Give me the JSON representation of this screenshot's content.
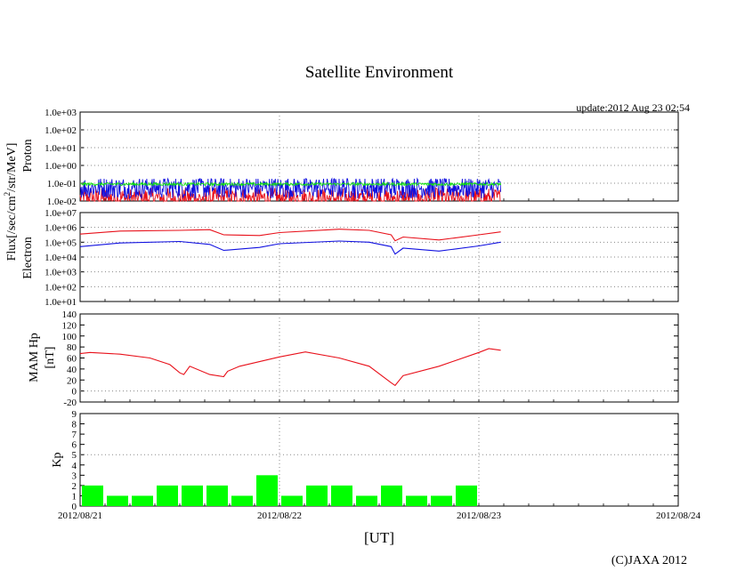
{
  "title": "Satellite Environment",
  "update_text": "update:2012 Aug 23 02:54",
  "copyright": "(C)JAXA 2012",
  "x_axis_label": "[UT]",
  "x_ticks": [
    "2012/08/21",
    "2012/08/22",
    "2012/08/23",
    "2012/08/24"
  ],
  "colors": {
    "red": "#e8101a",
    "blue": "#1010e0",
    "green": "#10e010",
    "kp_bar": "#00ff00",
    "grid": "#888888"
  },
  "chart_data": [
    {
      "type": "line",
      "name": "proton",
      "ylabel": "Proton",
      "yscale": "log",
      "ylim_exp": [
        -2,
        3
      ],
      "yticks": [
        "1.0e-02",
        "1.0e-01",
        "1.0e+00",
        "1.0e+01",
        "1.0e+02",
        "1.0e+03"
      ],
      "x_range_days": [
        0,
        3
      ],
      "series": [
        {
          "name": "proton-green",
          "color": "green",
          "x_end": 2.11,
          "log_base": -1.05,
          "log_noise": 0.08
        },
        {
          "name": "proton-blue",
          "color": "blue",
          "x_end": 2.11,
          "log_base": -1.25,
          "log_noise": 0.6
        },
        {
          "name": "proton-red",
          "color": "red",
          "x_end": 2.11,
          "log_base": -1.85,
          "log_noise": 0.6
        }
      ]
    },
    {
      "type": "line",
      "name": "electron",
      "ylabel": "Electron",
      "yscale": "log",
      "ylim_exp": [
        1,
        7
      ],
      "yticks": [
        "1.0e+01",
        "1.0e+02",
        "1.0e+03",
        "1.0e+04",
        "1.0e+05",
        "1.0e+06",
        "1.0e+07"
      ],
      "series": [
        {
          "name": "electron-red",
          "color": "red",
          "x": [
            0,
            0.2,
            0.5,
            0.65,
            0.72,
            0.9,
            1.0,
            1.3,
            1.45,
            1.56,
            1.58,
            1.62,
            1.8,
            2.0,
            2.11
          ],
          "log": [
            5.55,
            5.75,
            5.8,
            5.85,
            5.5,
            5.45,
            5.65,
            5.88,
            5.8,
            5.5,
            5.1,
            5.35,
            5.15,
            5.5,
            5.7
          ]
        },
        {
          "name": "electron-blue",
          "color": "blue",
          "x": [
            0,
            0.2,
            0.5,
            0.65,
            0.72,
            0.9,
            1.0,
            1.3,
            1.45,
            1.56,
            1.58,
            1.62,
            1.8,
            2.0,
            2.11
          ],
          "log": [
            4.7,
            4.95,
            5.05,
            4.85,
            4.45,
            4.65,
            4.9,
            5.08,
            5.0,
            4.7,
            4.2,
            4.6,
            4.4,
            4.75,
            5.0
          ]
        }
      ]
    },
    {
      "type": "line",
      "name": "mam-hp",
      "ylabel": "MAM Hp",
      "ylabel2": "[nT]",
      "ylim": [
        -20,
        140
      ],
      "yticks": [
        "-20",
        "0",
        "20",
        "40",
        "60",
        "80",
        "100",
        "120",
        "140"
      ],
      "series": [
        {
          "name": "mam-hp-red",
          "color": "red",
          "x": [
            0,
            0.05,
            0.2,
            0.35,
            0.45,
            0.5,
            0.52,
            0.55,
            0.65,
            0.72,
            0.74,
            0.8,
            1.0,
            1.13,
            1.3,
            1.45,
            1.56,
            1.58,
            1.62,
            1.8,
            2.0,
            2.05,
            2.11
          ],
          "y": [
            68,
            70,
            67,
            60,
            48,
            33,
            30,
            45,
            30,
            26,
            36,
            45,
            62,
            71,
            60,
            45,
            15,
            10,
            28,
            45,
            70,
            77,
            74
          ]
        }
      ]
    },
    {
      "type": "bar",
      "name": "kp",
      "ylabel": "Kp",
      "ylim": [
        0,
        9
      ],
      "yticks": [
        "0",
        "1",
        "2",
        "3",
        "4",
        "5",
        "6",
        "7",
        "8",
        "9"
      ],
      "bar_interval_hours": 3,
      "values": [
        2,
        1,
        1,
        2,
        2,
        2,
        1,
        3,
        1,
        2,
        2,
        1,
        2,
        1,
        1,
        2
      ]
    }
  ],
  "flux_label_main": "Flux[/sec/cm",
  "flux_label_sup": "2",
  "flux_label_tail": "/str/MeV]"
}
